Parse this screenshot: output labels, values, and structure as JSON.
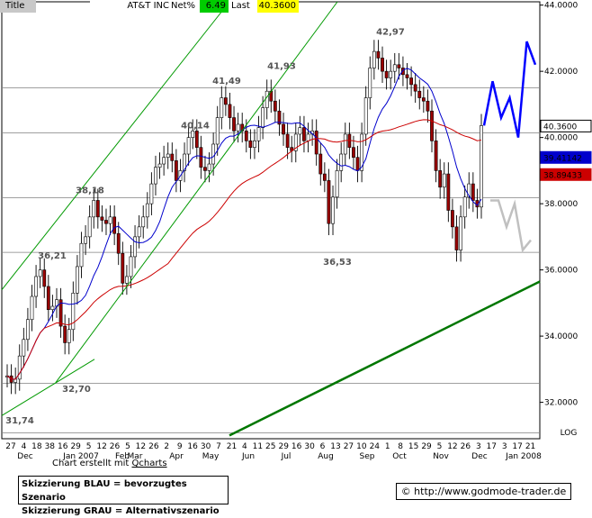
{
  "header": {
    "title_label": "Title",
    "symbol": "AT&T INC",
    "netpct_label": "Net%",
    "netpct_value": "6.49",
    "last_label": "Last",
    "last_value": "40.3600",
    "colors": {
      "title_bg": "#c8c8c8",
      "netpct_bg": "#00cc00",
      "last_bg": "#ffff00"
    }
  },
  "footer": {
    "credit_prefix": "Chart erstellt mit ",
    "credit_link": "Qcharts",
    "legend_line1": "Skizzierung BLAU = bevorzugtes Szenario",
    "legend_line2": "Skizzierung GRAU = Alternativszenario",
    "url": "© http://www.godmode-trader.de"
  },
  "chart_data": {
    "type": "candlestick",
    "y_axis": {
      "ylim": [
        30.9,
        44.1
      ],
      "scale": "LOG",
      "ticks": [
        {
          "value": 44.0,
          "label": "44.0000"
        },
        {
          "value": 42.0,
          "label": "42.0000"
        },
        {
          "value": 40.0,
          "label": "40.0000"
        },
        {
          "value": 38.0,
          "label": "38.0000"
        },
        {
          "value": 36.0,
          "label": "36.0000"
        },
        {
          "value": 34.0,
          "label": "34.0000"
        },
        {
          "value": 32.0,
          "label": "32.0000"
        }
      ],
      "scale_label": "LOG"
    },
    "price_tags": [
      {
        "value": 40.36,
        "label": "40.3600",
        "bg": "#ffffff",
        "fg": "#000000"
      },
      {
        "value": 39.41142,
        "label": "39.41142",
        "bg": "#0000cc",
        "fg": "#ffffff"
      },
      {
        "value": 38.89433,
        "label": "38.89433",
        "bg": "#cc0000",
        "fg": "#ffffff"
      }
    ],
    "x_day_labels": [
      "27",
      "4",
      "18",
      "38",
      "16",
      "29",
      "5",
      "12",
      "26",
      "5",
      "12",
      "26",
      "2",
      "9",
      "16",
      "30",
      "7",
      "21",
      "4",
      "11",
      "25",
      "29",
      "16",
      "30",
      "6",
      "13",
      "27",
      "10",
      "24",
      "1",
      "8",
      "15",
      "29",
      "5",
      "12",
      "26",
      "3",
      "17",
      "3",
      "17",
      "21"
    ],
    "x_month_labels": [
      "Dec",
      "Jan 2007",
      "Feb",
      "Mar",
      "Apr",
      "May",
      "Jun",
      "Jul",
      "Aug",
      "Sep",
      "Oct",
      "Nov",
      "Dec",
      "Jan 2008"
    ],
    "annotations": [
      {
        "label": "31,74",
        "value": 31.74
      },
      {
        "label": "36,21",
        "value": 36.21
      },
      {
        "label": "38,18",
        "value": 38.18
      },
      {
        "label": "32,70",
        "value": 32.7
      },
      {
        "label": "40,14",
        "value": 40.14
      },
      {
        "label": "41,49",
        "value": 41.49
      },
      {
        "label": "41,93",
        "value": 41.93
      },
      {
        "label": "42,97",
        "value": 42.97
      },
      {
        "label": "36,53",
        "value": 36.53
      }
    ],
    "horizontal_levels": [
      41.5,
      40.14,
      38.18,
      36.53,
      32.57,
      31.08
    ],
    "series": [
      {
        "name": "Price",
        "kind": "candles",
        "close": [
          32.8,
          32.6,
          32.7,
          33.4,
          33.9,
          34.5,
          35.2,
          35.8,
          36.0,
          35.5,
          34.8,
          34.9,
          35.1,
          34.3,
          33.8,
          34.2,
          35.3,
          36.1,
          36.8,
          37.0,
          37.6,
          38.1,
          37.6,
          37.5,
          37.4,
          37.6,
          37.1,
          36.5,
          35.6,
          35.8,
          36.4,
          37.0,
          37.3,
          37.6,
          38.0,
          38.6,
          39.1,
          39.2,
          39.4,
          39.5,
          39.3,
          38.7,
          39.0,
          39.5,
          40.0,
          40.2,
          39.7,
          39.1,
          39.0,
          39.2,
          39.8,
          40.6,
          41.2,
          41.0,
          40.6,
          40.2,
          40.4,
          40.2,
          39.9,
          39.7,
          39.9,
          40.3,
          40.9,
          41.4,
          41.1,
          40.8,
          40.4,
          40.1,
          39.7,
          39.6,
          40.1,
          40.3,
          39.9,
          40.1,
          40.2,
          39.5,
          38.9,
          38.7,
          37.4,
          38.2,
          39.0,
          39.5,
          40.1,
          39.7,
          39.4,
          39.0,
          40.1,
          41.2,
          42.1,
          42.6,
          42.4,
          42.0,
          41.8,
          42.0,
          42.2,
          42.1,
          41.9,
          41.8,
          41.6,
          41.4,
          41.2,
          41.1,
          40.8,
          39.9,
          39.0,
          38.5,
          38.9,
          37.8,
          37.3,
          36.6,
          37.6,
          38.2,
          38.6,
          38.1,
          37.9,
          40.36
        ]
      },
      {
        "name": "Blue MA",
        "kind": "line",
        "color": "#0000cc"
      },
      {
        "name": "Red MA",
        "kind": "line",
        "color": "#cc0000"
      }
    ],
    "scenarios": [
      {
        "name": "Skizzierung BLAU",
        "color": "#0000ff",
        "values": [
          40.36,
          41.7,
          40.6,
          41.2,
          40.0,
          42.9,
          42.2
        ]
      },
      {
        "name": "Skizzierung GRAU",
        "color": "#c0c0c0",
        "values": [
          38.1,
          38.1,
          37.3,
          38.0,
          36.6,
          36.9
        ]
      }
    ]
  }
}
